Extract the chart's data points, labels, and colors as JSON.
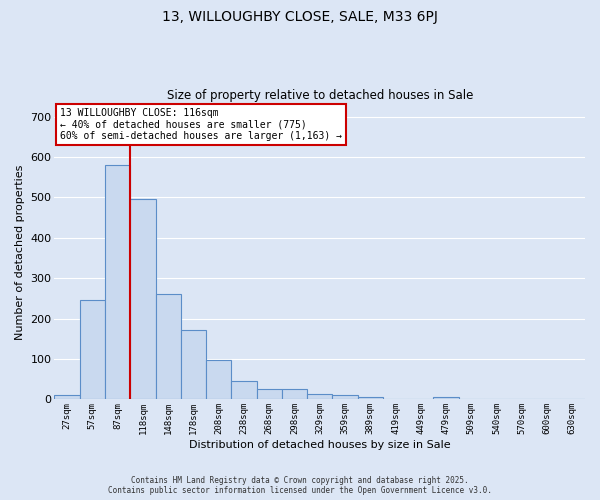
{
  "title_line1": "13, WILLOUGHBY CLOSE, SALE, M33 6PJ",
  "title_line2": "Size of property relative to detached houses in Sale",
  "xlabel": "Distribution of detached houses by size in Sale",
  "ylabel": "Number of detached properties",
  "categories": [
    "27sqm",
    "57sqm",
    "87sqm",
    "118sqm",
    "148sqm",
    "178sqm",
    "208sqm",
    "238sqm",
    "268sqm",
    "298sqm",
    "329sqm",
    "359sqm",
    "389sqm",
    "419sqm",
    "449sqm",
    "479sqm",
    "509sqm",
    "540sqm",
    "570sqm",
    "600sqm",
    "630sqm"
  ],
  "values": [
    12,
    247,
    580,
    497,
    260,
    172,
    97,
    46,
    25,
    25,
    13,
    12,
    5,
    0,
    0,
    5,
    0,
    0,
    0,
    0,
    0
  ],
  "bar_color": "#c9d9ef",
  "bar_edge_color": "#5b8dc8",
  "fig_background_color": "#dce6f5",
  "plot_background_color": "#dce6f5",
  "grid_color": "#ffffff",
  "vline_color": "#cc0000",
  "vline_x_index": 2.5,
  "annotation_text": "13 WILLOUGHBY CLOSE: 116sqm\n← 40% of detached houses are smaller (775)\n60% of semi-detached houses are larger (1,163) →",
  "annotation_box_color": "#ffffff",
  "annotation_box_edge": "#cc0000",
  "footer_text": "Contains HM Land Registry data © Crown copyright and database right 2025.\nContains public sector information licensed under the Open Government Licence v3.0.",
  "ylim": [
    0,
    730
  ],
  "yticks": [
    0,
    100,
    200,
    300,
    400,
    500,
    600,
    700
  ]
}
